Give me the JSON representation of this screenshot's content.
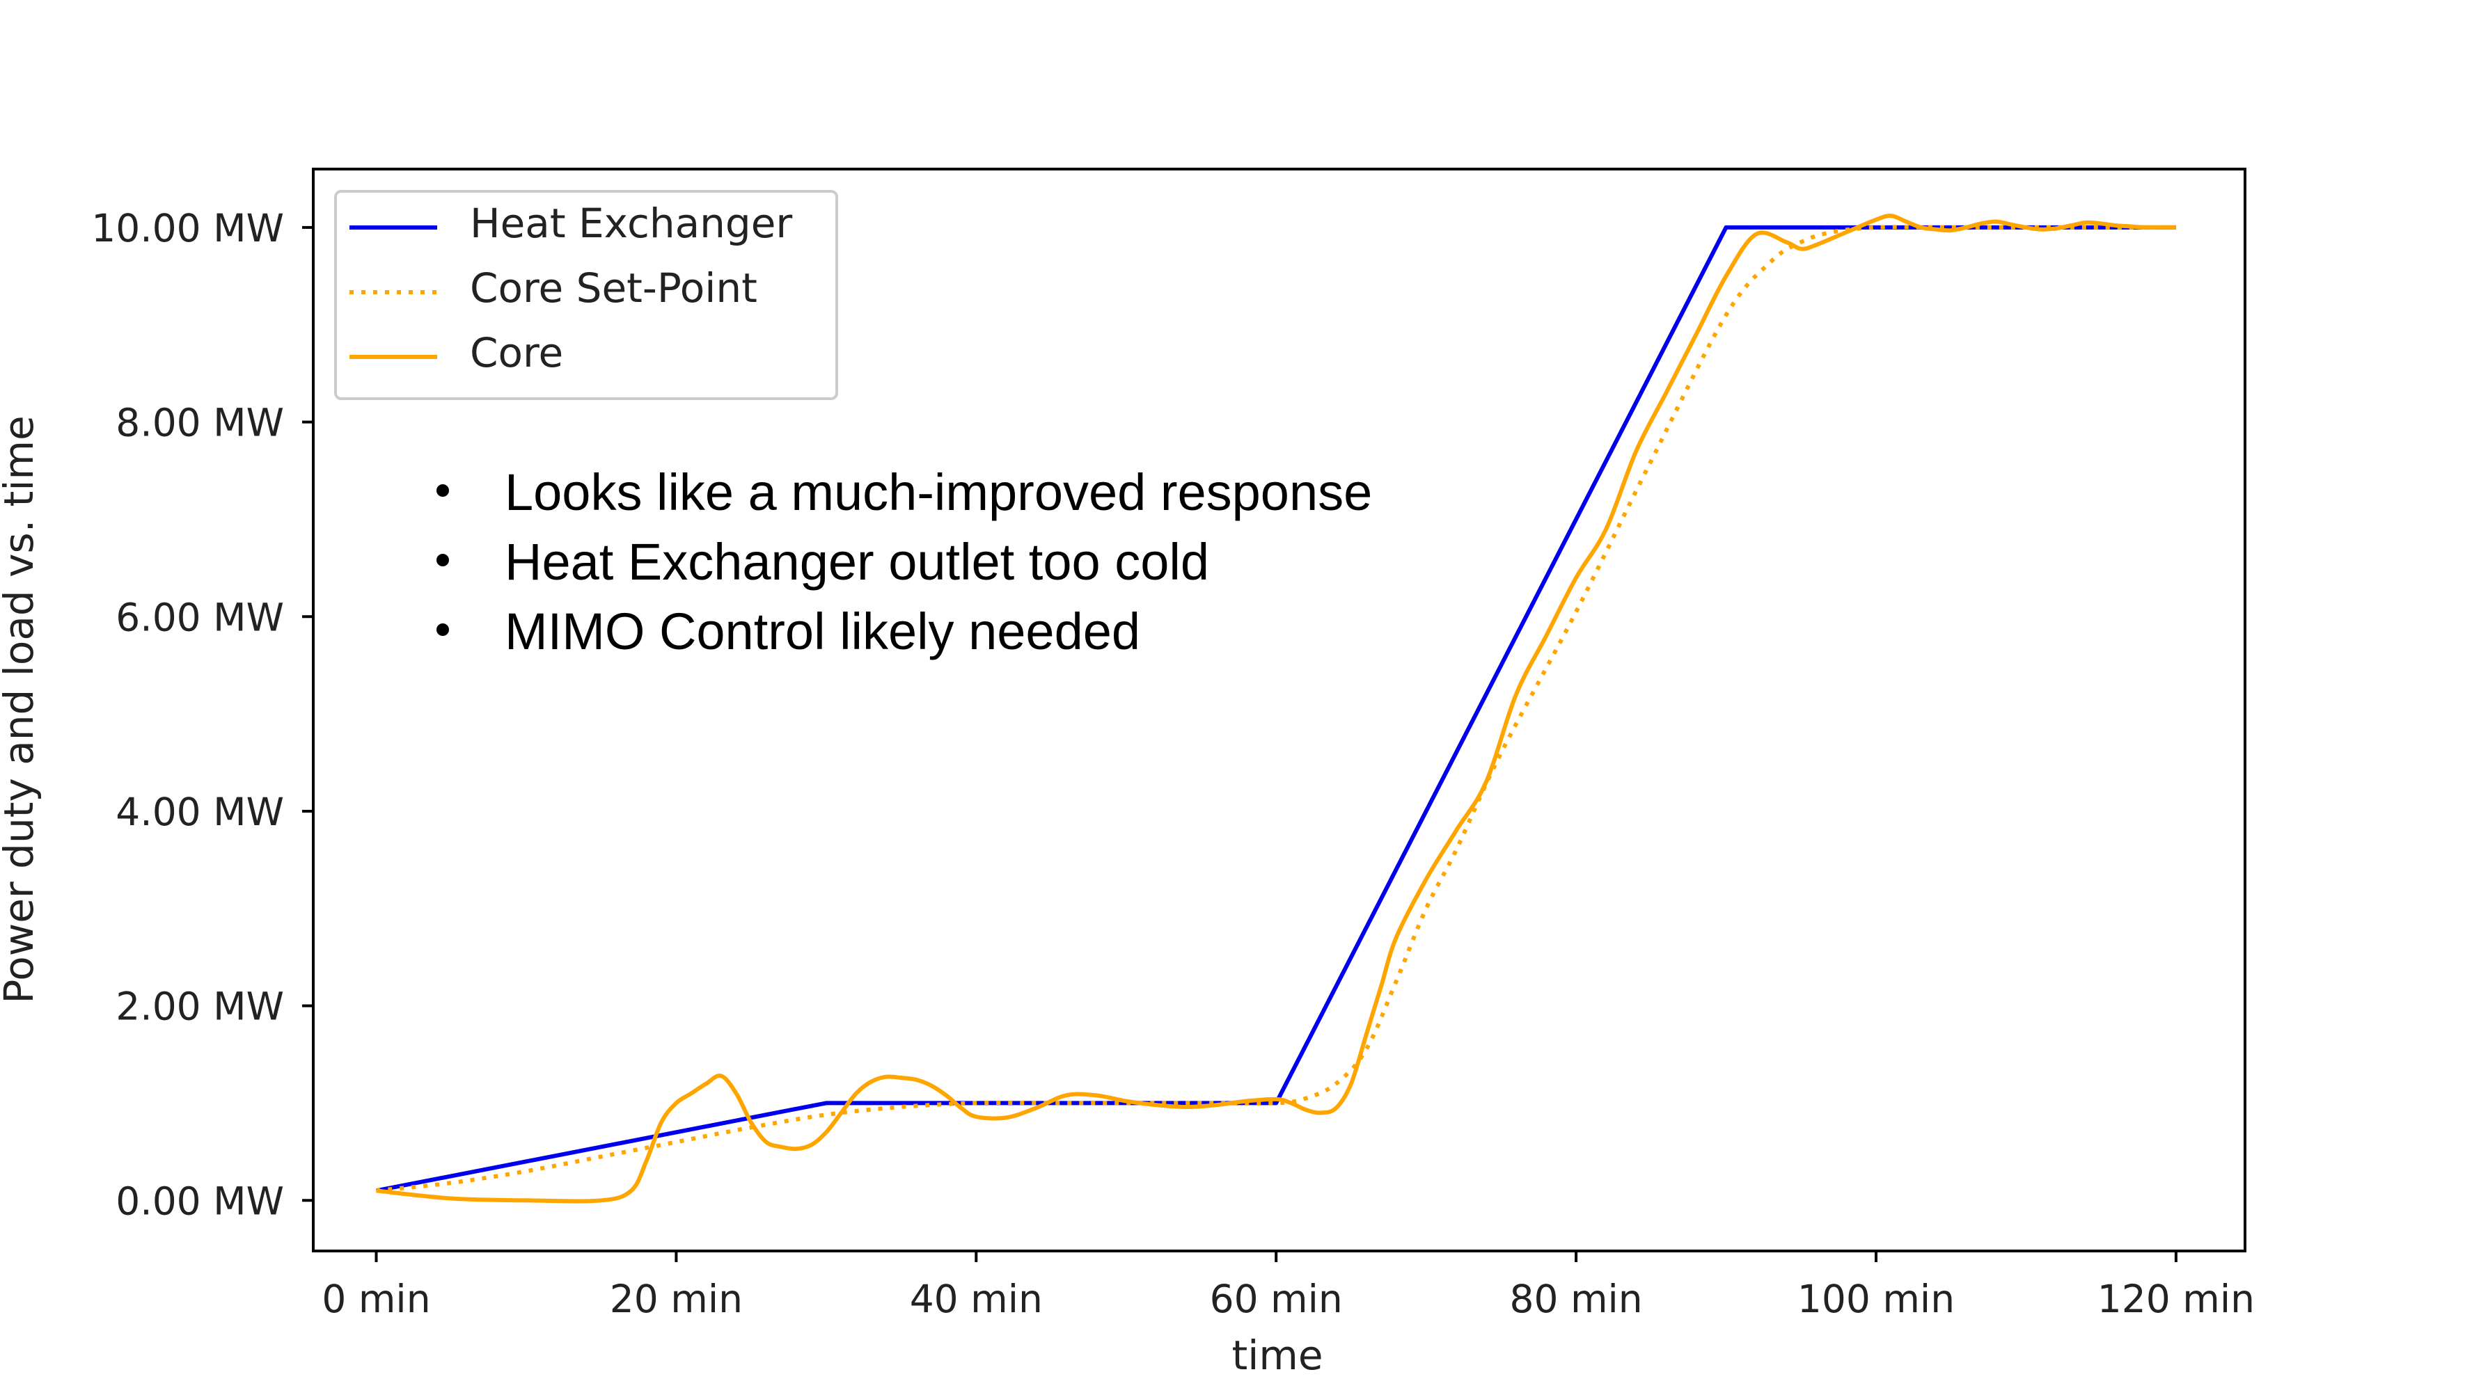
{
  "chart_data": {
    "type": "line",
    "title": "",
    "xlabel": "time",
    "ylabel": "Power duty and load vs. time",
    "xlim": [
      -4.2,
      124.6
    ],
    "ylim": [
      -0.52,
      10.6
    ],
    "x_ticks": [
      0,
      20,
      40,
      60,
      80,
      100,
      120
    ],
    "x_tick_labels": [
      "0 min",
      "20 min",
      "40 min",
      "60 min",
      "80 min",
      "100 min",
      "120 min"
    ],
    "y_ticks": [
      0,
      2,
      4,
      6,
      8,
      10
    ],
    "y_tick_labels": [
      "0.00 MW",
      "2.00 MW",
      "4.00 MW",
      "6.00 MW",
      "8.00 MW",
      "10.00 MW"
    ],
    "legend_position": "top-left",
    "grid": false,
    "series": [
      {
        "name": "Heat Exchanger",
        "color": "#0000ee",
        "style": "solid",
        "x": [
          0,
          30,
          60,
          90,
          120
        ],
        "y": [
          0.1,
          1.0,
          1.0,
          10.0,
          10.0
        ]
      },
      {
        "name": "Core Set-Point",
        "color": "#ffa500",
        "style": "dotted",
        "x": [
          0,
          5,
          10,
          15,
          20,
          25,
          30,
          35,
          40,
          45,
          50,
          55,
          60,
          62,
          64,
          66,
          68,
          70,
          72,
          75,
          80,
          85,
          90,
          93,
          95,
          97,
          100,
          105,
          110,
          115,
          120
        ],
        "y": [
          0.1,
          0.18,
          0.3,
          0.45,
          0.6,
          0.75,
          0.88,
          0.96,
          1.0,
          1.0,
          1.0,
          1.0,
          1.0,
          1.05,
          1.2,
          1.55,
          2.25,
          3.0,
          3.6,
          4.6,
          6.05,
          7.6,
          9.1,
          9.65,
          9.85,
          9.95,
          10.0,
          10.0,
          10.0,
          10.0,
          10.0
        ]
      },
      {
        "name": "Core",
        "color": "#ffa500",
        "style": "solid",
        "x": [
          0,
          5,
          10,
          15,
          17,
          18,
          19,
          20,
          21,
          22,
          23,
          24,
          25,
          26,
          27,
          28,
          29,
          30,
          31,
          32,
          33,
          34,
          35,
          36,
          37,
          38,
          39,
          40,
          42,
          44,
          46,
          48,
          50,
          52,
          54,
          56,
          58,
          60,
          61,
          62,
          63,
          64,
          65,
          66,
          67,
          68,
          70,
          72,
          74,
          76,
          78,
          80,
          82,
          84,
          86,
          88,
          90,
          92,
          94,
          95,
          96,
          98,
          100,
          101,
          102,
          103,
          104,
          105,
          106,
          107,
          108,
          109,
          110,
          111,
          112,
          113,
          114,
          115,
          116,
          117,
          118,
          119,
          120
        ],
        "y": [
          0.1,
          0.02,
          0.0,
          0.0,
          0.1,
          0.4,
          0.8,
          1.0,
          1.1,
          1.2,
          1.28,
          1.1,
          0.8,
          0.6,
          0.55,
          0.53,
          0.57,
          0.7,
          0.9,
          1.1,
          1.22,
          1.27,
          1.26,
          1.24,
          1.18,
          1.08,
          0.95,
          0.86,
          0.85,
          0.95,
          1.08,
          1.08,
          1.02,
          0.98,
          0.96,
          0.98,
          1.02,
          1.04,
          1.0,
          0.93,
          0.9,
          0.95,
          1.2,
          1.7,
          2.2,
          2.7,
          3.3,
          3.8,
          4.3,
          5.2,
          5.8,
          6.4,
          6.9,
          7.7,
          8.3,
          8.9,
          9.5,
          9.93,
          9.85,
          9.78,
          9.82,
          9.95,
          10.08,
          10.12,
          10.06,
          10.0,
          9.98,
          9.97,
          10.0,
          10.04,
          10.06,
          10.03,
          10.0,
          9.98,
          9.99,
          10.02,
          10.05,
          10.04,
          10.02,
          10.01,
          10.0,
          10.0,
          10.0
        ]
      }
    ]
  },
  "annotations": [
    "Looks like a much-improved response",
    "Heat Exchanger outlet too cold",
    "MIMO Control likely needed"
  ]
}
